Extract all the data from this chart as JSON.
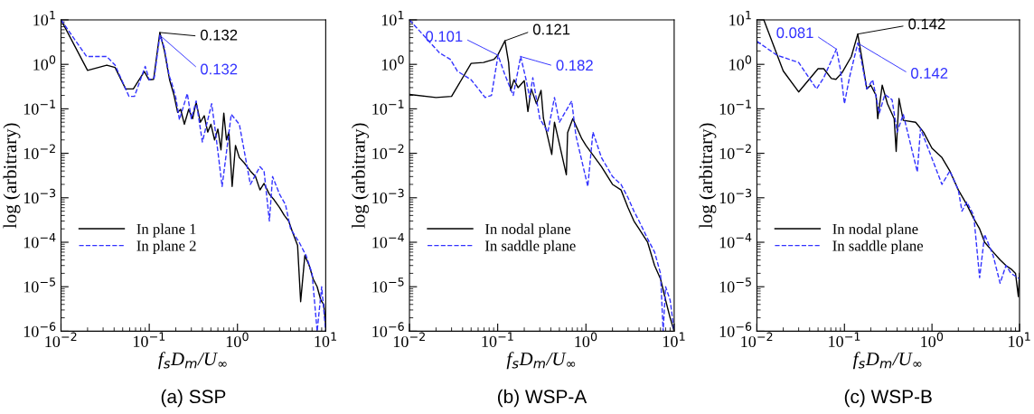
{
  "chart_data": [
    {
      "type": "line",
      "title": "(a) SSP",
      "xlabel": "f$_{s}$D$_{m}$/U$_{∞}$",
      "ylabel": "log (arbitrary)",
      "log": "xy",
      "legend": "bottom left",
      "grid": false,
      "xlim": [
        0.01,
        10
      ],
      "ylim": [
        1e-06,
        10
      ],
      "xticks": [
        {
          "value": 0.01,
          "label": "10$^{−2}$"
        },
        {
          "value": 0.1,
          "label": "10$^{−1}$"
        },
        {
          "value": 1,
          "label": "10$^{0}$"
        },
        {
          "value": 10,
          "label": "10$^{1}$"
        }
      ],
      "yticks": [
        {
          "value": 1e-06,
          "label": "10$^{−6}$"
        },
        {
          "value": 1e-05,
          "label": "10$^{−5}$"
        },
        {
          "value": 0.0001,
          "label": "10$^{−4}$"
        },
        {
          "value": 0.001,
          "label": "10$^{−3}$"
        },
        {
          "value": 0.01,
          "label": "10$^{−2}$"
        },
        {
          "value": 0.1,
          "label": "10$^{−1}$"
        },
        {
          "value": 1,
          "label": "10$^{0}$"
        },
        {
          "value": 10,
          "label": "10$^{1}$"
        }
      ],
      "series": [
        {
          "name": "In plane 1",
          "color": "#000000",
          "line_style": "solid",
          "x": [
            0.01,
            0.02,
            0.033,
            0.041,
            0.054,
            0.066,
            0.088,
            0.099,
            0.112,
            0.132,
            0.148,
            0.17,
            0.19,
            0.21,
            0.227,
            0.25,
            0.28,
            0.31,
            0.34,
            0.38,
            0.42,
            0.46,
            0.5,
            0.55,
            0.6,
            0.65,
            0.7,
            0.75,
            0.8,
            0.87,
            0.95,
            1.05,
            1.2,
            1.4,
            1.6,
            1.8,
            2.0,
            2.3,
            2.6,
            3.0,
            3.4,
            3.8,
            4.3,
            4.8,
            5.2,
            5.8,
            6.5,
            7.2,
            8.0,
            8.8,
            9.5,
            10
          ],
          "values": [
            10,
            0.73,
            0.96,
            0.85,
            0.28,
            0.28,
            0.69,
            0.45,
            0.46,
            5.2,
            2.1,
            0.45,
            0.21,
            0.083,
            0.097,
            0.045,
            0.097,
            0.06,
            0.14,
            0.05,
            0.07,
            0.03,
            0.045,
            0.02,
            0.035,
            0.012,
            0.08,
            0.02,
            0.03,
            0.0018,
            0.015,
            0.008,
            0.006,
            0.004,
            0.003,
            0.0015,
            0.0021,
            0.0012,
            0.0009,
            0.0006,
            0.0004,
            0.0003,
            0.00015,
            8.5e-05,
            4.6e-06,
            5e-05,
            3e-05,
            1.5e-05,
            1e-05,
            5e-06,
            4e-06,
            1.4e-06
          ]
        },
        {
          "name": "In plane 2",
          "color": "#3333ff",
          "line_style": "dashed",
          "x": [
            0.01,
            0.0195,
            0.033,
            0.041,
            0.059,
            0.068,
            0.09,
            0.1,
            0.114,
            0.132,
            0.148,
            0.168,
            0.18,
            0.2,
            0.22,
            0.27,
            0.3,
            0.34,
            0.4,
            0.51,
            0.57,
            0.67,
            0.85,
            1.05,
            1.4,
            1.8,
            2.0,
            2.3,
            2.5,
            3.0,
            3.5,
            4.0,
            5.0,
            6.0,
            7.0,
            8.0,
            9.0,
            10
          ],
          "values": [
            10,
            1.5,
            1.5,
            0.96,
            0.19,
            0.19,
            0.9,
            0.45,
            0.5,
            4.5,
            2.4,
            0.56,
            0.38,
            0.18,
            0.057,
            0.22,
            0.06,
            0.15,
            0.018,
            0.13,
            0.025,
            0.0018,
            0.075,
            0.045,
            0.002,
            0.005,
            0.004,
            0.0003,
            0.003,
            0.0012,
            0.0007,
            0.0002,
            0.0001,
            5e-05,
            2e-05,
            1e-06,
            1e-05,
            1e-06
          ]
        }
      ],
      "annotations": [
        {
          "text": "0.132",
          "x": 0.132,
          "y": 5.2
        },
        {
          "text": "0.132",
          "x": 0.132,
          "y": 4.5
        }
      ]
    },
    {
      "type": "line",
      "title": "(b) WSP-A",
      "xlabel": "f$_{s}$D$_{m}$/U$_{∞}$",
      "ylabel": "log (arbitrary)",
      "log": "xy",
      "legend": "bottom left",
      "grid": false,
      "xlim": [
        0.01,
        10
      ],
      "ylim": [
        1e-06,
        10
      ],
      "xticks": [
        {
          "value": 0.01,
          "label": "10$^{−2}$"
        },
        {
          "value": 0.1,
          "label": "10$^{−1}$"
        },
        {
          "value": 1,
          "label": "10$^{0}$"
        },
        {
          "value": 10,
          "label": "10$^{1}$"
        }
      ],
      "yticks": [
        {
          "value": 1e-06,
          "label": "10$^{−6}$"
        },
        {
          "value": 1e-05,
          "label": "10$^{−5}$"
        },
        {
          "value": 0.0001,
          "label": "10$^{−4}$"
        },
        {
          "value": 0.001,
          "label": "10$^{−3}$"
        },
        {
          "value": 0.01,
          "label": "10$^{−2}$"
        },
        {
          "value": 0.1,
          "label": "10$^{−1}$"
        },
        {
          "value": 1,
          "label": "10$^{0}$"
        },
        {
          "value": 10,
          "label": "10$^{1}$"
        }
      ],
      "series": [
        {
          "name": "In nodal plane",
          "color": "#000000",
          "line_style": "solid",
          "x": [
            0.01,
            0.02,
            0.03,
            0.05,
            0.069,
            0.091,
            0.1,
            0.121,
            0.133,
            0.14,
            0.153,
            0.17,
            0.2,
            0.22,
            0.24,
            0.275,
            0.31,
            0.33,
            0.41,
            0.44,
            0.6,
            0.62,
            0.71,
            0.9,
            1.0,
            1.5,
            2.0,
            2.5,
            3.0,
            3.5,
            4.0,
            5.0,
            6.0,
            7.0,
            8.0,
            9.0,
            10
          ],
          "values": [
            0.21,
            0.18,
            0.19,
            1.05,
            1.1,
            1.3,
            1.6,
            3.4,
            1.1,
            0.26,
            0.45,
            0.3,
            0.43,
            0.087,
            0.28,
            0.13,
            0.26,
            0.061,
            0.0094,
            0.05,
            0.0033,
            0.029,
            0.06,
            0.021,
            0.015,
            0.005,
            0.002,
            0.0015,
            0.0006,
            0.0003,
            0.0002,
            0.0001,
            3e-05,
            1.5e-05,
            5e-06,
            2e-06,
            1e-06
          ]
        },
        {
          "name": "In saddle plane",
          "color": "#3333ff",
          "line_style": "dashed",
          "x": [
            0.01,
            0.022,
            0.029,
            0.035,
            0.05,
            0.072,
            0.085,
            0.101,
            0.12,
            0.15,
            0.182,
            0.21,
            0.23,
            0.25,
            0.3,
            0.37,
            0.44,
            0.5,
            0.69,
            0.77,
            1.05,
            1.2,
            1.5,
            2.0,
            2.5,
            3.0,
            3.5,
            4.0,
            5.0,
            6.0,
            7.0,
            7.5,
            8.0,
            9.0,
            10
          ],
          "values": [
            10,
            1.8,
            1.3,
            0.7,
            0.45,
            0.18,
            0.2,
            1.6,
            0.6,
            0.2,
            1.5,
            0.45,
            0.18,
            0.5,
            0.06,
            0.03,
            0.18,
            0.05,
            0.15,
            0.025,
            0.0018,
            0.03,
            0.008,
            0.003,
            0.002,
            0.001,
            0.0005,
            0.0003,
            0.00012,
            6e-05,
            2e-05,
            1e-06,
            1e-05,
            5e-06,
            1e-06
          ]
        }
      ],
      "annotations": [
        {
          "text": "0.121",
          "x": 0.121,
          "y": 3.4
        },
        {
          "text": "0.101",
          "x": 0.101,
          "y": 1.6
        },
        {
          "text": "0.182",
          "x": 0.182,
          "y": 1.5
        }
      ]
    },
    {
      "type": "line",
      "title": "(c) WSP-B",
      "xlabel": "f$_{s}$D$_{m}$/U$_{∞}$",
      "ylabel": "log (arbitrary)",
      "log": "xy",
      "legend": "bottom left",
      "grid": false,
      "xlim": [
        0.01,
        10
      ],
      "ylim": [
        1e-06,
        10
      ],
      "xticks": [
        {
          "value": 0.01,
          "label": "10$^{−2}$"
        },
        {
          "value": 0.1,
          "label": "10$^{−1}$"
        },
        {
          "value": 1,
          "label": "10$^{0}$"
        },
        {
          "value": 10,
          "label": "10$^{1}$"
        }
      ],
      "yticks": [
        {
          "value": 1e-06,
          "label": "10$^{−6}$"
        },
        {
          "value": 1e-05,
          "label": "10$^{−5}$"
        },
        {
          "value": 0.0001,
          "label": "10$^{−4}$"
        },
        {
          "value": 0.001,
          "label": "10$^{−3}$"
        },
        {
          "value": 0.01,
          "label": "10$^{−2}$"
        },
        {
          "value": 0.1,
          "label": "10$^{−1}$"
        },
        {
          "value": 1,
          "label": "10$^{0}$"
        },
        {
          "value": 10,
          "label": "10$^{1}$"
        }
      ],
      "series": [
        {
          "name": "In nodal plane",
          "color": "#000000",
          "line_style": "solid",
          "x": [
            0.012,
            0.02,
            0.03,
            0.05,
            0.058,
            0.071,
            0.08,
            0.094,
            0.12,
            0.142,
            0.16,
            0.18,
            0.2,
            0.23,
            0.24,
            0.27,
            0.31,
            0.37,
            0.39,
            0.42,
            0.47,
            0.65,
            0.8,
            1.0,
            1.3,
            1.6,
            2.0,
            2.5,
            3.0,
            3.5,
            4.0,
            5.0,
            6.0,
            7.0,
            8.0,
            9.0,
            9.7,
            10
          ],
          "values": [
            10,
            0.71,
            0.24,
            0.8,
            0.8,
            0.48,
            0.46,
            0.65,
            1.5,
            4.8,
            1.2,
            0.28,
            0.34,
            0.2,
            0.06,
            0.34,
            0.13,
            0.06,
            0.011,
            0.17,
            0.055,
            0.05,
            0.03,
            0.013,
            0.008,
            0.004,
            0.0015,
            0.0007,
            0.00034,
            0.0002,
            0.0001,
            6e-05,
            4e-05,
            3e-05,
            2.5e-05,
            2e-05,
            6e-06,
            2e-05
          ]
        },
        {
          "name": "In saddle plane",
          "color": "#3333ff",
          "line_style": "dashed",
          "x": [
            0.01,
            0.017,
            0.03,
            0.048,
            0.058,
            0.081,
            0.09,
            0.1,
            0.114,
            0.142,
            0.16,
            0.18,
            0.21,
            0.25,
            0.29,
            0.35,
            0.4,
            0.47,
            0.68,
            0.74,
            1.3,
            1.6,
            2.0,
            2.2,
            2.5,
            3.0,
            3.5,
            4.0,
            5.0,
            6.0,
            7.0,
            8.0,
            10
          ],
          "values": [
            3.3,
            1.6,
            1.1,
            0.28,
            0.5,
            2.2,
            0.77,
            0.13,
            0.5,
            3.0,
            0.96,
            0.28,
            0.45,
            0.08,
            0.21,
            0.16,
            0.03,
            0.075,
            0.0038,
            0.036,
            0.002,
            0.004,
            0.0015,
            0.0005,
            0.0008,
            0.0004,
            1.6e-05,
            0.00015,
            5e-05,
            1.2e-05,
            3e-05,
            2e-05,
            1.5e-05
          ]
        }
      ],
      "annotations": [
        {
          "text": "0.081",
          "x": 0.081,
          "y": 2.2
        },
        {
          "text": "0.142",
          "x": 0.142,
          "y": 4.8
        },
        {
          "text": "0.142",
          "x": 0.142,
          "y": 3.0
        }
      ]
    }
  ]
}
